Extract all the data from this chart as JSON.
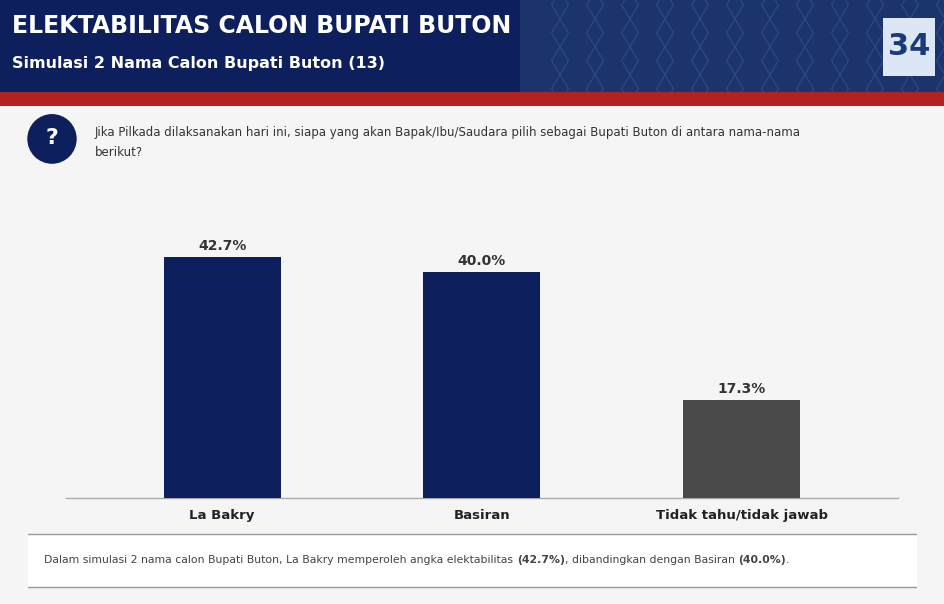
{
  "title_line1": "ELEKTABILITAS CALON BUPATI BUTON",
  "title_line2": "Simulasi 2 Nama Calon Bupati Buton (13)",
  "page_number": "34",
  "question_line1": "Jika Pilkada dilaksanakan hari ini, siapa yang akan Bapak/Ibu/Saudara pilih sebagai Bupati Buton di antara nama-nama",
  "question_line2": "berikut?",
  "categories": [
    "La Bakry",
    "Basiran",
    "Tidak tahu/tidak jawab"
  ],
  "values": [
    42.7,
    40.0,
    17.3
  ],
  "labels": [
    "42.7%",
    "40.0%",
    "17.3%"
  ],
  "bar_colors": [
    "#0d1f5c",
    "#0d1f5c",
    "#4a4a4a"
  ],
  "header_bg_color": "#0d1f5c",
  "red_bar_color": "#b22222",
  "title1_color": "#ffffff",
  "title2_color": "#ffffff",
  "page_num_color": "#1a3a7a",
  "question_color": "#333333",
  "label_color": "#333333",
  "footer_normal": "Dalam simulasi 2 nama calon Bupati Buton, La Bakry memperoleh angka elektabilitas ",
  "footer_bold1": "(42.7%)",
  "footer_mid": ", dibandingkan dengan Basiran ",
  "footer_bold2": "(40.0%)",
  "footer_end": ".",
  "bg_color": "#f5f5f5",
  "axis_line_color": "#aaaaaa",
  "ylim": [
    0,
    55
  ],
  "bar_width": 0.45
}
